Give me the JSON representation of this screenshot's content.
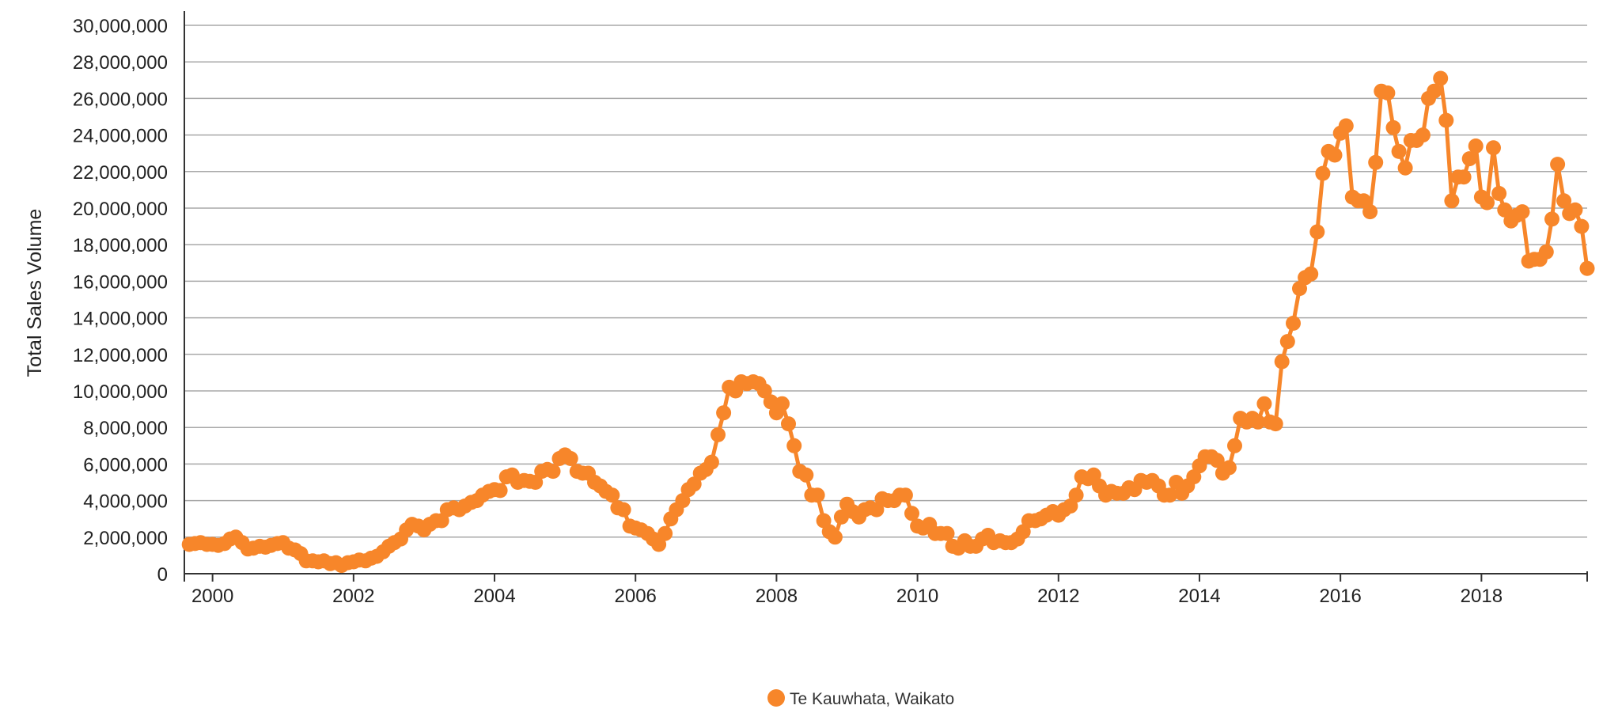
{
  "chart_data": {
    "type": "line",
    "title": "",
    "xlabel": "",
    "ylabel": "Total Sales Volume",
    "ylim": [
      0,
      30000000
    ],
    "xlim": [
      1999.6,
      2019.5
    ],
    "grid": true,
    "legend_placement": "bottom-center",
    "y_ticks": [
      "0",
      "2,000,000",
      "4,000,000",
      "6,000,000",
      "8,000,000",
      "10,000,000",
      "12,000,000",
      "14,000,000",
      "16,000,000",
      "18,000,000",
      "20,000,000",
      "22,000,000",
      "24,000,000",
      "26,000,000",
      "28,000,000",
      "30,000,000"
    ],
    "x_ticks": [
      "2000",
      "2002",
      "2004",
      "2006",
      "2008",
      "2010",
      "2012",
      "2014",
      "2016",
      "2018"
    ],
    "colors": {
      "series": "#f7862a",
      "grid": "#a8a8a8",
      "axis": "#333333"
    },
    "series": [
      {
        "name": "Te Kauwhata, Waikato",
        "points": [
          [
            1999.67,
            1600000
          ],
          [
            1999.75,
            1650000
          ],
          [
            1999.83,
            1700000
          ],
          [
            1999.92,
            1600000
          ],
          [
            2000.0,
            1600000
          ],
          [
            2000.08,
            1550000
          ],
          [
            2000.17,
            1650000
          ],
          [
            2000.25,
            1900000
          ],
          [
            2000.33,
            2000000
          ],
          [
            2000.42,
            1700000
          ],
          [
            2000.5,
            1350000
          ],
          [
            2000.58,
            1400000
          ],
          [
            2000.67,
            1500000
          ],
          [
            2000.75,
            1450000
          ],
          [
            2000.83,
            1550000
          ],
          [
            2000.92,
            1650000
          ],
          [
            2001.0,
            1700000
          ],
          [
            2001.08,
            1400000
          ],
          [
            2001.17,
            1300000
          ],
          [
            2001.25,
            1100000
          ],
          [
            2001.33,
            700000
          ],
          [
            2001.42,
            700000
          ],
          [
            2001.5,
            650000
          ],
          [
            2001.58,
            700000
          ],
          [
            2001.67,
            550000
          ],
          [
            2001.75,
            600000
          ],
          [
            2001.83,
            450000
          ],
          [
            2001.92,
            600000
          ],
          [
            2002.0,
            650000
          ],
          [
            2002.08,
            750000
          ],
          [
            2002.17,
            700000
          ],
          [
            2002.25,
            850000
          ],
          [
            2002.33,
            950000
          ],
          [
            2002.42,
            1200000
          ],
          [
            2002.5,
            1500000
          ],
          [
            2002.58,
            1700000
          ],
          [
            2002.67,
            1900000
          ],
          [
            2002.75,
            2400000
          ],
          [
            2002.83,
            2700000
          ],
          [
            2002.92,
            2600000
          ],
          [
            2003.0,
            2400000
          ],
          [
            2003.08,
            2700000
          ],
          [
            2003.17,
            2900000
          ],
          [
            2003.25,
            2900000
          ],
          [
            2003.33,
            3500000
          ],
          [
            2003.42,
            3600000
          ],
          [
            2003.5,
            3500000
          ],
          [
            2003.58,
            3700000
          ],
          [
            2003.67,
            3900000
          ],
          [
            2003.75,
            4000000
          ],
          [
            2003.83,
            4300000
          ],
          [
            2003.92,
            4500000
          ],
          [
            2004.0,
            4600000
          ],
          [
            2004.08,
            4550000
          ],
          [
            2004.17,
            5300000
          ],
          [
            2004.25,
            5400000
          ],
          [
            2004.33,
            5000000
          ],
          [
            2004.42,
            5100000
          ],
          [
            2004.5,
            5050000
          ],
          [
            2004.58,
            5000000
          ],
          [
            2004.67,
            5600000
          ],
          [
            2004.75,
            5700000
          ],
          [
            2004.83,
            5600000
          ],
          [
            2004.92,
            6300000
          ],
          [
            2005.0,
            6500000
          ],
          [
            2005.08,
            6300000
          ],
          [
            2005.17,
            5600000
          ],
          [
            2005.25,
            5500000
          ],
          [
            2005.33,
            5500000
          ],
          [
            2005.42,
            5000000
          ],
          [
            2005.5,
            4800000
          ],
          [
            2005.58,
            4500000
          ],
          [
            2005.67,
            4300000
          ],
          [
            2005.75,
            3600000
          ],
          [
            2005.83,
            3500000
          ],
          [
            2005.92,
            2600000
          ],
          [
            2006.0,
            2500000
          ],
          [
            2006.08,
            2400000
          ],
          [
            2006.17,
            2200000
          ],
          [
            2006.25,
            1900000
          ],
          [
            2006.33,
            1600000
          ],
          [
            2006.42,
            2200000
          ],
          [
            2006.5,
            3000000
          ],
          [
            2006.58,
            3500000
          ],
          [
            2006.67,
            4000000
          ],
          [
            2006.75,
            4600000
          ],
          [
            2006.83,
            4900000
          ],
          [
            2006.92,
            5500000
          ],
          [
            2007.0,
            5700000
          ],
          [
            2007.08,
            6100000
          ],
          [
            2007.17,
            7600000
          ],
          [
            2007.25,
            8800000
          ],
          [
            2007.33,
            10200000
          ],
          [
            2007.42,
            10000000
          ],
          [
            2007.5,
            10500000
          ],
          [
            2007.58,
            10400000
          ],
          [
            2007.67,
            10500000
          ],
          [
            2007.75,
            10400000
          ],
          [
            2007.83,
            10000000
          ],
          [
            2007.92,
            9400000
          ],
          [
            2008.0,
            8800000
          ],
          [
            2008.08,
            9300000
          ],
          [
            2008.17,
            8200000
          ],
          [
            2008.25,
            7000000
          ],
          [
            2008.33,
            5600000
          ],
          [
            2008.42,
            5400000
          ],
          [
            2008.5,
            4300000
          ],
          [
            2008.58,
            4300000
          ],
          [
            2008.67,
            2900000
          ],
          [
            2008.75,
            2300000
          ],
          [
            2008.83,
            2000000
          ],
          [
            2008.92,
            3100000
          ],
          [
            2009.0,
            3800000
          ],
          [
            2009.08,
            3400000
          ],
          [
            2009.17,
            3100000
          ],
          [
            2009.25,
            3500000
          ],
          [
            2009.33,
            3600000
          ],
          [
            2009.42,
            3500000
          ],
          [
            2009.5,
            4100000
          ],
          [
            2009.58,
            4000000
          ],
          [
            2009.67,
            4000000
          ],
          [
            2009.75,
            4300000
          ],
          [
            2009.83,
            4300000
          ],
          [
            2009.92,
            3300000
          ],
          [
            2010.0,
            2600000
          ],
          [
            2010.08,
            2500000
          ],
          [
            2010.17,
            2700000
          ],
          [
            2010.25,
            2200000
          ],
          [
            2010.33,
            2200000
          ],
          [
            2010.42,
            2200000
          ],
          [
            2010.5,
            1500000
          ],
          [
            2010.58,
            1400000
          ],
          [
            2010.67,
            1800000
          ],
          [
            2010.75,
            1500000
          ],
          [
            2010.83,
            1500000
          ],
          [
            2010.92,
            1900000
          ],
          [
            2011.0,
            2100000
          ],
          [
            2011.08,
            1700000
          ],
          [
            2011.17,
            1800000
          ],
          [
            2011.25,
            1700000
          ],
          [
            2011.33,
            1700000
          ],
          [
            2011.42,
            1900000
          ],
          [
            2011.5,
            2300000
          ],
          [
            2011.58,
            2900000
          ],
          [
            2011.67,
            2900000
          ],
          [
            2011.75,
            3000000
          ],
          [
            2011.83,
            3200000
          ],
          [
            2011.92,
            3400000
          ],
          [
            2012.0,
            3200000
          ],
          [
            2012.08,
            3500000
          ],
          [
            2012.17,
            3700000
          ],
          [
            2012.25,
            4300000
          ],
          [
            2012.33,
            5300000
          ],
          [
            2012.42,
            5200000
          ],
          [
            2012.5,
            5400000
          ],
          [
            2012.58,
            4800000
          ],
          [
            2012.67,
            4300000
          ],
          [
            2012.75,
            4500000
          ],
          [
            2012.83,
            4400000
          ],
          [
            2012.92,
            4400000
          ],
          [
            2013.0,
            4700000
          ],
          [
            2013.08,
            4600000
          ],
          [
            2013.17,
            5100000
          ],
          [
            2013.25,
            5000000
          ],
          [
            2013.33,
            5100000
          ],
          [
            2013.42,
            4800000
          ],
          [
            2013.5,
            4300000
          ],
          [
            2013.58,
            4300000
          ],
          [
            2013.67,
            5000000
          ],
          [
            2013.75,
            4400000
          ],
          [
            2013.83,
            4800000
          ],
          [
            2013.92,
            5300000
          ],
          [
            2014.0,
            5900000
          ],
          [
            2014.08,
            6400000
          ],
          [
            2014.17,
            6400000
          ],
          [
            2014.25,
            6200000
          ],
          [
            2014.33,
            5500000
          ],
          [
            2014.42,
            5800000
          ],
          [
            2014.5,
            7000000
          ],
          [
            2014.58,
            8500000
          ],
          [
            2014.67,
            8300000
          ],
          [
            2014.75,
            8500000
          ],
          [
            2014.83,
            8300000
          ],
          [
            2014.92,
            9300000
          ],
          [
            2015.0,
            8300000
          ],
          [
            2015.08,
            8200000
          ],
          [
            2015.17,
            11600000
          ],
          [
            2015.25,
            12700000
          ],
          [
            2015.33,
            13700000
          ],
          [
            2015.42,
            15600000
          ],
          [
            2015.5,
            16200000
          ],
          [
            2015.58,
            16400000
          ],
          [
            2015.67,
            18700000
          ],
          [
            2015.75,
            21900000
          ],
          [
            2015.83,
            23100000
          ],
          [
            2015.92,
            22900000
          ],
          [
            2016.0,
            24100000
          ],
          [
            2016.08,
            24500000
          ],
          [
            2016.17,
            20600000
          ],
          [
            2016.25,
            20400000
          ],
          [
            2016.33,
            20400000
          ],
          [
            2016.42,
            19800000
          ],
          [
            2016.5,
            22500000
          ],
          [
            2016.58,
            26400000
          ],
          [
            2016.67,
            26300000
          ],
          [
            2016.75,
            24400000
          ],
          [
            2016.83,
            23100000
          ],
          [
            2016.92,
            22200000
          ],
          [
            2017.0,
            23700000
          ],
          [
            2017.08,
            23700000
          ],
          [
            2017.17,
            24000000
          ],
          [
            2017.25,
            26000000
          ],
          [
            2017.33,
            26400000
          ],
          [
            2017.42,
            27100000
          ],
          [
            2017.5,
            24800000
          ],
          [
            2017.58,
            20400000
          ],
          [
            2017.67,
            21700000
          ],
          [
            2017.75,
            21700000
          ],
          [
            2017.83,
            22700000
          ],
          [
            2017.92,
            23400000
          ],
          [
            2018.0,
            20600000
          ],
          [
            2018.08,
            20300000
          ],
          [
            2018.17,
            23300000
          ],
          [
            2018.25,
            20800000
          ],
          [
            2018.33,
            19900000
          ],
          [
            2018.42,
            19300000
          ],
          [
            2018.5,
            19600000
          ],
          [
            2018.58,
            19800000
          ],
          [
            2018.67,
            17100000
          ],
          [
            2018.75,
            17200000
          ],
          [
            2018.83,
            17200000
          ],
          [
            2018.92,
            17600000
          ],
          [
            2019.0,
            19400000
          ],
          [
            2019.08,
            22400000
          ],
          [
            2019.17,
            20400000
          ],
          [
            2019.25,
            19700000
          ],
          [
            2019.33,
            19900000
          ],
          [
            2019.42,
            19000000
          ],
          [
            2019.5,
            16700000
          ]
        ]
      }
    ]
  }
}
